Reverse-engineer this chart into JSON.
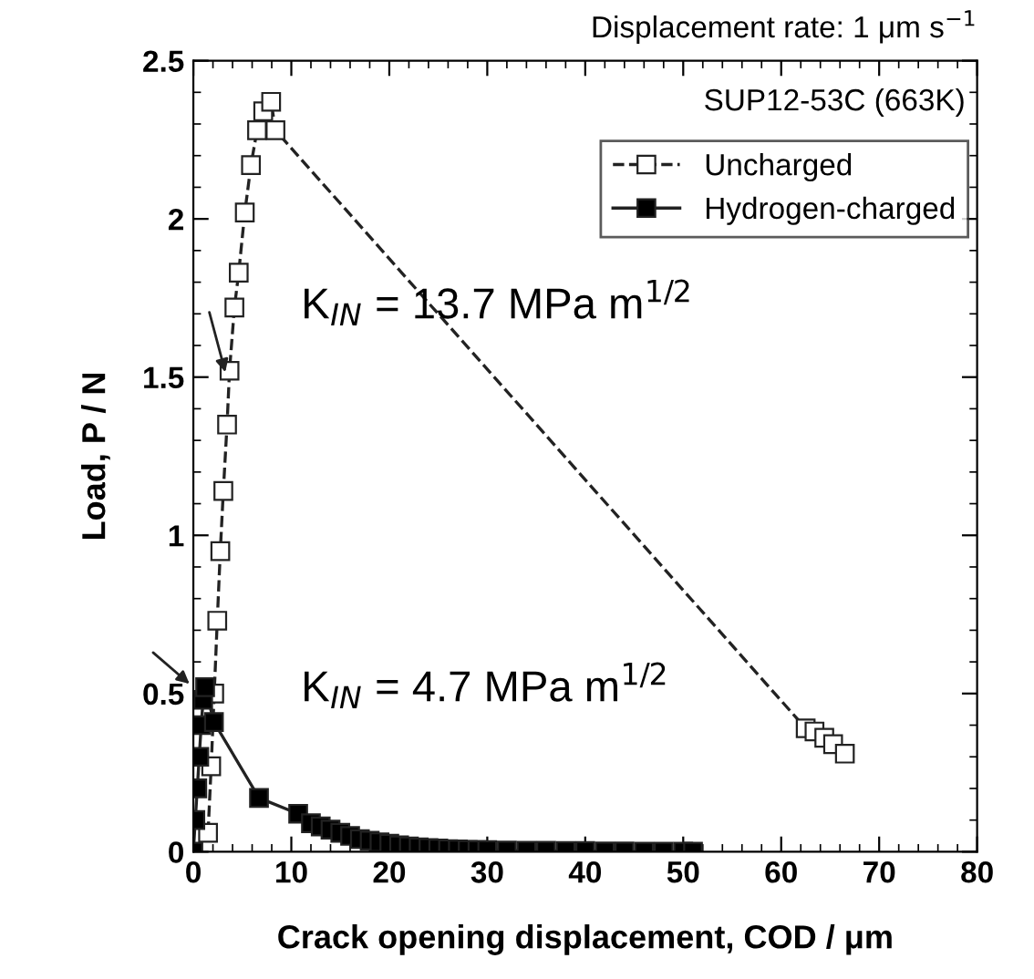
{
  "chart_data": {
    "type": "line",
    "title": "Displacement rate: 1 μm s$^{−1}$",
    "xlabel": "Crack opening displacement, COD / μm",
    "ylabel": "Load, P / N",
    "xlim": [
      0,
      80
    ],
    "xticks": [
      0,
      10,
      20,
      30,
      40,
      50,
      60,
      70,
      80
    ],
    "ylim": [
      0,
      2.5
    ],
    "yticks": [
      0,
      0.5,
      1,
      1.5,
      2,
      2.5
    ],
    "legend": "top right",
    "marker": "square",
    "series": [
      {
        "name": "Uncharged",
        "color": "#ffffff",
        "line_style": "dashed",
        "x": [
          1.5,
          1.82,
          2.13,
          2.44,
          2.75,
          3.06,
          3.44,
          3.69,
          4.19,
          4.63,
          5.25,
          5.88,
          6.5,
          7.13,
          7.94,
          8.38,
          62.5,
          63.4,
          64.4,
          65.3,
          66.5
        ],
        "values": [
          0.06,
          0.27,
          0.5,
          0.73,
          0.95,
          1.14,
          1.35,
          1.52,
          1.72,
          1.83,
          2.02,
          2.17,
          2.28,
          2.34,
          2.37,
          2.28,
          0.39,
          0.38,
          0.36,
          0.34,
          0.31
        ]
      },
      {
        "name": "Hydrogen-charged",
        "color": "#000000",
        "line_style": "solid",
        "x": [
          0,
          0.2,
          0.4,
          0.6,
          0.8,
          1.0,
          1.2,
          2.1,
          6.7,
          10.7,
          12,
          13,
          14,
          15,
          16,
          17,
          18,
          19,
          20,
          21,
          22,
          23,
          24,
          25,
          26,
          27,
          28,
          29,
          30,
          32,
          34,
          36,
          38,
          40,
          42,
          44,
          46,
          48,
          50,
          51
        ],
        "values": [
          0,
          0.1,
          0.2,
          0.3,
          0.4,
          0.48,
          0.52,
          0.41,
          0.17,
          0.12,
          0.09,
          0.08,
          0.07,
          0.06,
          0.05,
          0.04,
          0.035,
          0.03,
          0.025,
          0.02,
          0.017,
          0.014,
          0.012,
          0.01,
          0.008,
          0.007,
          0.006,
          0.005,
          0.005,
          0.004,
          0.003,
          0.003,
          0.002,
          0.002,
          0.001,
          0.001,
          0,
          0,
          0,
          0
        ]
      }
    ],
    "annotations": [
      "SUP12-53C (663K)",
      {
        "text": "K$_{IN}$ = 13.7 MPa m$^{1/2}$",
        "x": 3.4,
        "y": 1.5
      },
      {
        "text": "K$_{IN}$ = 4.7 MPa m$^{1/2}$",
        "x": 0,
        "y": 0.52
      }
    ]
  }
}
